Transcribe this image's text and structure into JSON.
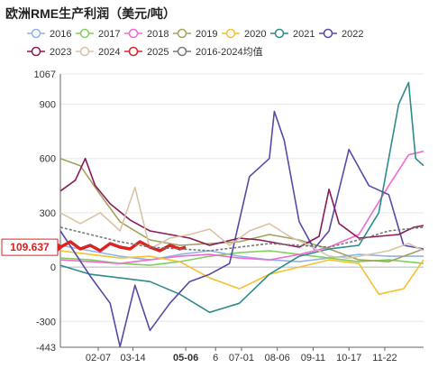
{
  "title": "欧洲RME生产利润（美元/吨）",
  "chart_data": {
    "type": "line",
    "title": "欧洲RME生产利润（美元/吨）",
    "xlabel": "",
    "ylabel": "",
    "ylim": [
      -443,
      1067
    ],
    "y_ticks": [
      -443,
      -300,
      0,
      300,
      600,
      900,
      1067
    ],
    "x_tick_labels": [
      {
        "label": "02-07",
        "day": 38
      },
      {
        "label": "03-14",
        "day": 73
      },
      {
        "label": "05-06",
        "day": 126,
        "highlight": true
      },
      {
        "label": "6",
        "day": 156
      },
      {
        "label": "07-01",
        "day": 182
      },
      {
        "label": "08-06",
        "day": 218
      },
      {
        "label": "09-11",
        "day": 254
      },
      {
        "label": "10-17",
        "day": 290
      },
      {
        "label": "11-22",
        "day": 326
      }
    ],
    "pointer": {
      "label": "109.637",
      "value": 109.637
    },
    "legend_position": "top",
    "series": [
      {
        "name": "2016",
        "color": "#8fb4e6",
        "values": [
          [
            0,
            120
          ],
          [
            30,
            90
          ],
          [
            60,
            60
          ],
          [
            90,
            40
          ],
          [
            120,
            70
          ],
          [
            150,
            90
          ],
          [
            180,
            60
          ],
          [
            210,
            40
          ],
          [
            240,
            30
          ],
          [
            270,
            50
          ],
          [
            300,
            70
          ],
          [
            330,
            60
          ],
          [
            365,
            60
          ]
        ]
      },
      {
        "name": "2017",
        "color": "#7fd05a",
        "values": [
          [
            0,
            50
          ],
          [
            30,
            40
          ],
          [
            60,
            20
          ],
          [
            90,
            10
          ],
          [
            120,
            30
          ],
          [
            150,
            60
          ],
          [
            180,
            80
          ],
          [
            210,
            90
          ],
          [
            240,
            70
          ],
          [
            270,
            50
          ],
          [
            300,
            30
          ],
          [
            330,
            40
          ],
          [
            365,
            20
          ]
        ]
      },
      {
        "name": "2018",
        "color": "#f06ad0",
        "values": [
          [
            0,
            40
          ],
          [
            30,
            30
          ],
          [
            60,
            20
          ],
          [
            90,
            40
          ],
          [
            120,
            60
          ],
          [
            150,
            70
          ],
          [
            180,
            50
          ],
          [
            210,
            40
          ],
          [
            240,
            70
          ],
          [
            270,
            110
          ],
          [
            300,
            180
          ],
          [
            330,
            450
          ],
          [
            350,
            620
          ],
          [
            365,
            640
          ]
        ]
      },
      {
        "name": "2019",
        "color": "#a3a25a",
        "values": [
          [
            0,
            600
          ],
          [
            20,
            560
          ],
          [
            40,
            400
          ],
          [
            60,
            250
          ],
          [
            90,
            150
          ],
          [
            120,
            120
          ],
          [
            150,
            130
          ],
          [
            180,
            140
          ],
          [
            210,
            180
          ],
          [
            240,
            150
          ],
          [
            270,
            100
          ],
          [
            300,
            40
          ],
          [
            330,
            30
          ],
          [
            365,
            100
          ]
        ]
      },
      {
        "name": "2020",
        "color": "#f2c230",
        "values": [
          [
            0,
            90
          ],
          [
            30,
            70
          ],
          [
            60,
            50
          ],
          [
            90,
            60
          ],
          [
            120,
            30
          ],
          [
            150,
            -60
          ],
          [
            180,
            -120
          ],
          [
            210,
            -40
          ],
          [
            240,
            0
          ],
          [
            270,
            40
          ],
          [
            300,
            20
          ],
          [
            320,
            -150
          ],
          [
            345,
            -120
          ],
          [
            365,
            40
          ]
        ]
      },
      {
        "name": "2021",
        "color": "#2e8b8b",
        "values": [
          [
            0,
            10
          ],
          [
            30,
            -40
          ],
          [
            60,
            -60
          ],
          [
            90,
            -80
          ],
          [
            120,
            -150
          ],
          [
            150,
            -250
          ],
          [
            180,
            -200
          ],
          [
            210,
            -40
          ],
          [
            240,
            60
          ],
          [
            270,
            100
          ],
          [
            300,
            120
          ],
          [
            320,
            300
          ],
          [
            340,
            900
          ],
          [
            350,
            1020
          ],
          [
            357,
            600
          ],
          [
            365,
            560
          ]
        ]
      },
      {
        "name": "2022",
        "color": "#564aa6",
        "values": [
          [
            0,
            200
          ],
          [
            30,
            -50
          ],
          [
            50,
            -200
          ],
          [
            60,
            -440
          ],
          [
            75,
            -100
          ],
          [
            90,
            -350
          ],
          [
            110,
            -200
          ],
          [
            130,
            -80
          ],
          [
            150,
            -40
          ],
          [
            170,
            20
          ],
          [
            190,
            500
          ],
          [
            210,
            600
          ],
          [
            215,
            860
          ],
          [
            225,
            700
          ],
          [
            240,
            250
          ],
          [
            255,
            100
          ],
          [
            270,
            200
          ],
          [
            290,
            650
          ],
          [
            310,
            450
          ],
          [
            330,
            400
          ],
          [
            345,
            120
          ],
          [
            365,
            100
          ]
        ]
      },
      {
        "name": "2023",
        "color": "#8b1a56",
        "values": [
          [
            0,
            420
          ],
          [
            15,
            480
          ],
          [
            25,
            600
          ],
          [
            35,
            450
          ],
          [
            50,
            350
          ],
          [
            70,
            260
          ],
          [
            90,
            200
          ],
          [
            110,
            180
          ],
          [
            130,
            160
          ],
          [
            150,
            120
          ],
          [
            180,
            160
          ],
          [
            200,
            150
          ],
          [
            220,
            130
          ],
          [
            240,
            110
          ],
          [
            260,
            170
          ],
          [
            270,
            430
          ],
          [
            280,
            240
          ],
          [
            300,
            160
          ],
          [
            320,
            170
          ],
          [
            340,
            180
          ],
          [
            355,
            220
          ],
          [
            365,
            230
          ]
        ]
      },
      {
        "name": "2024",
        "color": "#d8c4a8",
        "values": [
          [
            0,
            300
          ],
          [
            20,
            240
          ],
          [
            40,
            300
          ],
          [
            60,
            200
          ],
          [
            75,
            440
          ],
          [
            90,
            100
          ],
          [
            110,
            160
          ],
          [
            130,
            180
          ],
          [
            150,
            210
          ],
          [
            170,
            120
          ],
          [
            190,
            200
          ],
          [
            210,
            240
          ],
          [
            230,
            170
          ],
          [
            250,
            120
          ],
          [
            270,
            60
          ],
          [
            290,
            50
          ],
          [
            310,
            70
          ],
          [
            330,
            90
          ],
          [
            350,
            130
          ],
          [
            365,
            90
          ]
        ]
      },
      {
        "name": "2025",
        "color": "#dd2222",
        "values": [
          [
            0,
            110
          ],
          [
            10,
            140
          ],
          [
            20,
            100
          ],
          [
            30,
            120
          ],
          [
            40,
            90
          ],
          [
            50,
            130
          ],
          [
            60,
            110
          ],
          [
            70,
            100
          ],
          [
            80,
            140
          ],
          [
            90,
            110
          ],
          [
            100,
            90
          ],
          [
            110,
            120
          ],
          [
            120,
            100
          ],
          [
            126,
            109.637
          ]
        ]
      },
      {
        "name": "2016-2024均值",
        "color": "#777777",
        "values": [
          [
            0,
            220
          ],
          [
            30,
            180
          ],
          [
            60,
            140
          ],
          [
            90,
            110
          ],
          [
            120,
            100
          ],
          [
            150,
            90
          ],
          [
            180,
            110
          ],
          [
            210,
            130
          ],
          [
            240,
            120
          ],
          [
            270,
            110
          ],
          [
            300,
            150
          ],
          [
            330,
            200
          ],
          [
            365,
            220
          ]
        ]
      }
    ]
  }
}
